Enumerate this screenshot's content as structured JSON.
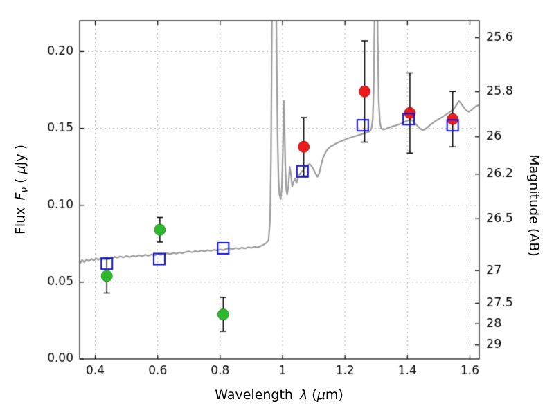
{
  "figure": {
    "background": "#ffffff",
    "xlabel": {
      "p1": "Wavelength ",
      "p2": "λ",
      "p3": " (",
      "p4": "μ",
      "p5": "m)"
    },
    "ylabel_left": {
      "p1": "Flux ",
      "p2": "F",
      "p3": "ν",
      "p4": " ( ",
      "p5": "μ",
      "p6": "Jy )"
    },
    "ylabel_right": "Magnitude (AB)"
  },
  "chart_data": {
    "type": "line+scatter",
    "title": "",
    "xlabel": "Wavelength λ (μm)",
    "ylabel": "Flux Fν ( μJy )",
    "ylabel_right": "Magnitude (AB)",
    "xlim": [
      0.35,
      1.63
    ],
    "ylim": [
      0,
      0.22
    ],
    "grid": true,
    "grid_color": "#b4b4b4",
    "frame_color": "#000000",
    "xticks": [
      0.4,
      0.6,
      0.8,
      1.0,
      1.2,
      1.4,
      1.6
    ],
    "xtick_labels": [
      "0.4",
      "0.6",
      "0.8",
      "1",
      "1.2",
      "1.4",
      "1.6"
    ],
    "yticks": [
      0.0,
      0.05,
      0.1,
      0.15,
      0.2
    ],
    "ytick_labels": [
      "0.00",
      "0.05",
      "0.10",
      "0.15",
      "0.20"
    ],
    "right_axis_ticks": [
      {
        "label": "25.6",
        "flux": 0.2089
      },
      {
        "label": "25.8",
        "flux": 0.1738
      },
      {
        "label": "26",
        "flux": 0.1445
      },
      {
        "label": "26.2",
        "flux": 0.1202
      },
      {
        "label": "26.5",
        "flux": 0.0912
      },
      {
        "label": "27",
        "flux": 0.0575
      },
      {
        "label": "27.5",
        "flux": 0.0363
      },
      {
        "label": "28",
        "flux": 0.0229
      },
      {
        "label": "29",
        "flux": 0.0091
      }
    ],
    "series": [
      {
        "name": "model-spectrum",
        "type": "line",
        "color": "#9b9b9b",
        "linewidth": 2.2,
        "points": [
          [
            0.35,
            0.0618
          ],
          [
            0.358,
            0.0645
          ],
          [
            0.365,
            0.0628
          ],
          [
            0.372,
            0.0648
          ],
          [
            0.38,
            0.0635
          ],
          [
            0.388,
            0.0652
          ],
          [
            0.395,
            0.064
          ],
          [
            0.403,
            0.0655
          ],
          [
            0.41,
            0.0645
          ],
          [
            0.418,
            0.0658
          ],
          [
            0.425,
            0.0648
          ],
          [
            0.433,
            0.066
          ],
          [
            0.44,
            0.0652
          ],
          [
            0.448,
            0.0662
          ],
          [
            0.455,
            0.0655
          ],
          [
            0.463,
            0.0665
          ],
          [
            0.47,
            0.0658
          ],
          [
            0.48,
            0.0668
          ],
          [
            0.49,
            0.066
          ],
          [
            0.5,
            0.067
          ],
          [
            0.51,
            0.0663
          ],
          [
            0.52,
            0.0672
          ],
          [
            0.53,
            0.0666
          ],
          [
            0.54,
            0.0675
          ],
          [
            0.55,
            0.0668
          ],
          [
            0.56,
            0.0678
          ],
          [
            0.57,
            0.0671
          ],
          [
            0.58,
            0.068
          ],
          [
            0.59,
            0.0674
          ],
          [
            0.6,
            0.0682
          ],
          [
            0.61,
            0.0676
          ],
          [
            0.62,
            0.0685
          ],
          [
            0.63,
            0.0688
          ],
          [
            0.64,
            0.0682
          ],
          [
            0.65,
            0.069
          ],
          [
            0.66,
            0.0685
          ],
          [
            0.67,
            0.0693
          ],
          [
            0.68,
            0.0688
          ],
          [
            0.69,
            0.0696
          ],
          [
            0.7,
            0.07
          ],
          [
            0.71,
            0.0694
          ],
          [
            0.72,
            0.0702
          ],
          [
            0.73,
            0.0697
          ],
          [
            0.74,
            0.0705
          ],
          [
            0.75,
            0.07
          ],
          [
            0.76,
            0.0708
          ],
          [
            0.77,
            0.0703
          ],
          [
            0.78,
            0.071
          ],
          [
            0.79,
            0.0706
          ],
          [
            0.8,
            0.0713
          ],
          [
            0.81,
            0.0708
          ],
          [
            0.82,
            0.0716
          ],
          [
            0.83,
            0.072
          ],
          [
            0.84,
            0.0714
          ],
          [
            0.85,
            0.0722
          ],
          [
            0.86,
            0.0717
          ],
          [
            0.87,
            0.0724
          ],
          [
            0.88,
            0.0719
          ],
          [
            0.89,
            0.0727
          ],
          [
            0.9,
            0.0722
          ],
          [
            0.91,
            0.073
          ],
          [
            0.92,
            0.0726
          ],
          [
            0.93,
            0.0734
          ],
          [
            0.94,
            0.0745
          ],
          [
            0.948,
            0.0755
          ],
          [
            0.955,
            0.0772
          ],
          [
            0.96,
            0.09
          ],
          [
            0.963,
            0.13
          ],
          [
            0.966,
            0.22
          ],
          [
            0.968,
            0.26
          ],
          [
            0.978,
            0.265
          ],
          [
            0.981,
            0.2
          ],
          [
            0.984,
            0.145
          ],
          [
            0.987,
            0.118
          ],
          [
            0.99,
            0.107
          ],
          [
            0.994,
            0.104
          ],
          [
            0.998,
            0.112
          ],
          [
            1.001,
            0.135
          ],
          [
            1.004,
            0.168
          ],
          [
            1.006,
            0.155
          ],
          [
            1.009,
            0.125
          ],
          [
            1.012,
            0.11
          ],
          [
            1.015,
            0.107
          ],
          [
            1.019,
            0.113
          ],
          [
            1.023,
            0.125
          ],
          [
            1.027,
            0.12
          ],
          [
            1.031,
            0.112
          ],
          [
            1.035,
            0.115
          ],
          [
            1.04,
            0.1175
          ],
          [
            1.045,
            0.1145
          ],
          [
            1.05,
            0.1185
          ],
          [
            1.056,
            0.1205
          ],
          [
            1.062,
            0.122
          ],
          [
            1.07,
            0.124
          ],
          [
            1.078,
            0.1258
          ],
          [
            1.086,
            0.1268
          ],
          [
            1.094,
            0.1252
          ],
          [
            1.1,
            0.123
          ],
          [
            1.106,
            0.1205
          ],
          [
            1.112,
            0.1185
          ],
          [
            1.118,
            0.121
          ],
          [
            1.124,
            0.1265
          ],
          [
            1.13,
            0.131
          ],
          [
            1.138,
            0.1345
          ],
          [
            1.146,
            0.1368
          ],
          [
            1.154,
            0.1382
          ],
          [
            1.162,
            0.139
          ],
          [
            1.17,
            0.14
          ],
          [
            1.178,
            0.1408
          ],
          [
            1.186,
            0.1415
          ],
          [
            1.194,
            0.1422
          ],
          [
            1.202,
            0.1428
          ],
          [
            1.21,
            0.1435
          ],
          [
            1.218,
            0.144
          ],
          [
            1.226,
            0.1445
          ],
          [
            1.234,
            0.145
          ],
          [
            1.242,
            0.1455
          ],
          [
            1.25,
            0.146
          ],
          [
            1.258,
            0.1465
          ],
          [
            1.266,
            0.147
          ],
          [
            1.274,
            0.1476
          ],
          [
            1.28,
            0.1482
          ],
          [
            1.285,
            0.15
          ],
          [
            1.289,
            0.156
          ],
          [
            1.292,
            0.175
          ],
          [
            1.295,
            0.23
          ],
          [
            1.298,
            0.265
          ],
          [
            1.302,
            0.265
          ],
          [
            1.305,
            0.21
          ],
          [
            1.308,
            0.168
          ],
          [
            1.312,
            0.154
          ],
          [
            1.316,
            0.15
          ],
          [
            1.322,
            0.1492
          ],
          [
            1.33,
            0.1496
          ],
          [
            1.338,
            0.1502
          ],
          [
            1.346,
            0.1508
          ],
          [
            1.354,
            0.1514
          ],
          [
            1.362,
            0.1518
          ],
          [
            1.37,
            0.1524
          ],
          [
            1.378,
            0.153
          ],
          [
            1.386,
            0.1538
          ],
          [
            1.394,
            0.1545
          ],
          [
            1.402,
            0.1552
          ],
          [
            1.41,
            0.1558
          ],
          [
            1.418,
            0.1548
          ],
          [
            1.426,
            0.153
          ],
          [
            1.434,
            0.1512
          ],
          [
            1.442,
            0.1496
          ],
          [
            1.45,
            0.1488
          ],
          [
            1.458,
            0.1496
          ],
          [
            1.466,
            0.151
          ],
          [
            1.474,
            0.1524
          ],
          [
            1.482,
            0.1536
          ],
          [
            1.49,
            0.1548
          ],
          [
            1.5,
            0.156
          ],
          [
            1.51,
            0.1572
          ],
          [
            1.52,
            0.1585
          ],
          [
            1.53,
            0.1598
          ],
          [
            1.54,
            0.1612
          ],
          [
            1.55,
            0.163
          ],
          [
            1.558,
            0.1655
          ],
          [
            1.565,
            0.1678
          ],
          [
            1.572,
            0.1662
          ],
          [
            1.58,
            0.1638
          ],
          [
            1.588,
            0.1618
          ],
          [
            1.596,
            0.1608
          ],
          [
            1.604,
            0.1618
          ],
          [
            1.612,
            0.1632
          ],
          [
            1.62,
            0.1645
          ],
          [
            1.63,
            0.1652
          ]
        ]
      },
      {
        "name": "observed-photometry-optical",
        "type": "scatter",
        "marker": "filled-circle",
        "color": "#2db92d",
        "edge": "#1d891d",
        "points": [
          {
            "x": 0.437,
            "y": 0.054,
            "yerr": 0.011
          },
          {
            "x": 0.607,
            "y": 0.084,
            "yerr": 0.008
          },
          {
            "x": 0.81,
            "y": 0.029,
            "yerr": 0.011
          }
        ]
      },
      {
        "name": "observed-photometry-infrared",
        "type": "scatter",
        "marker": "filled-circle",
        "color": "#ed1c1c",
        "edge": "#a51010",
        "points": [
          {
            "x": 1.068,
            "y": 0.138,
            "yerr": 0.019
          },
          {
            "x": 1.263,
            "y": 0.174,
            "yerr": 0.033
          },
          {
            "x": 1.408,
            "y": 0.16,
            "yerr": 0.026
          },
          {
            "x": 1.545,
            "y": 0.156,
            "yerr": 0.018
          }
        ]
      },
      {
        "name": "model-photometry",
        "type": "scatter",
        "marker": "open-square",
        "color": "#0f0fe0",
        "points": [
          {
            "x": 0.437,
            "y": 0.062
          },
          {
            "x": 0.605,
            "y": 0.065
          },
          {
            "x": 0.81,
            "y": 0.072
          },
          {
            "x": 1.064,
            "y": 0.122
          },
          {
            "x": 1.257,
            "y": 0.152
          },
          {
            "x": 1.404,
            "y": 0.156
          },
          {
            "x": 1.545,
            "y": 0.152
          }
        ]
      }
    ]
  }
}
